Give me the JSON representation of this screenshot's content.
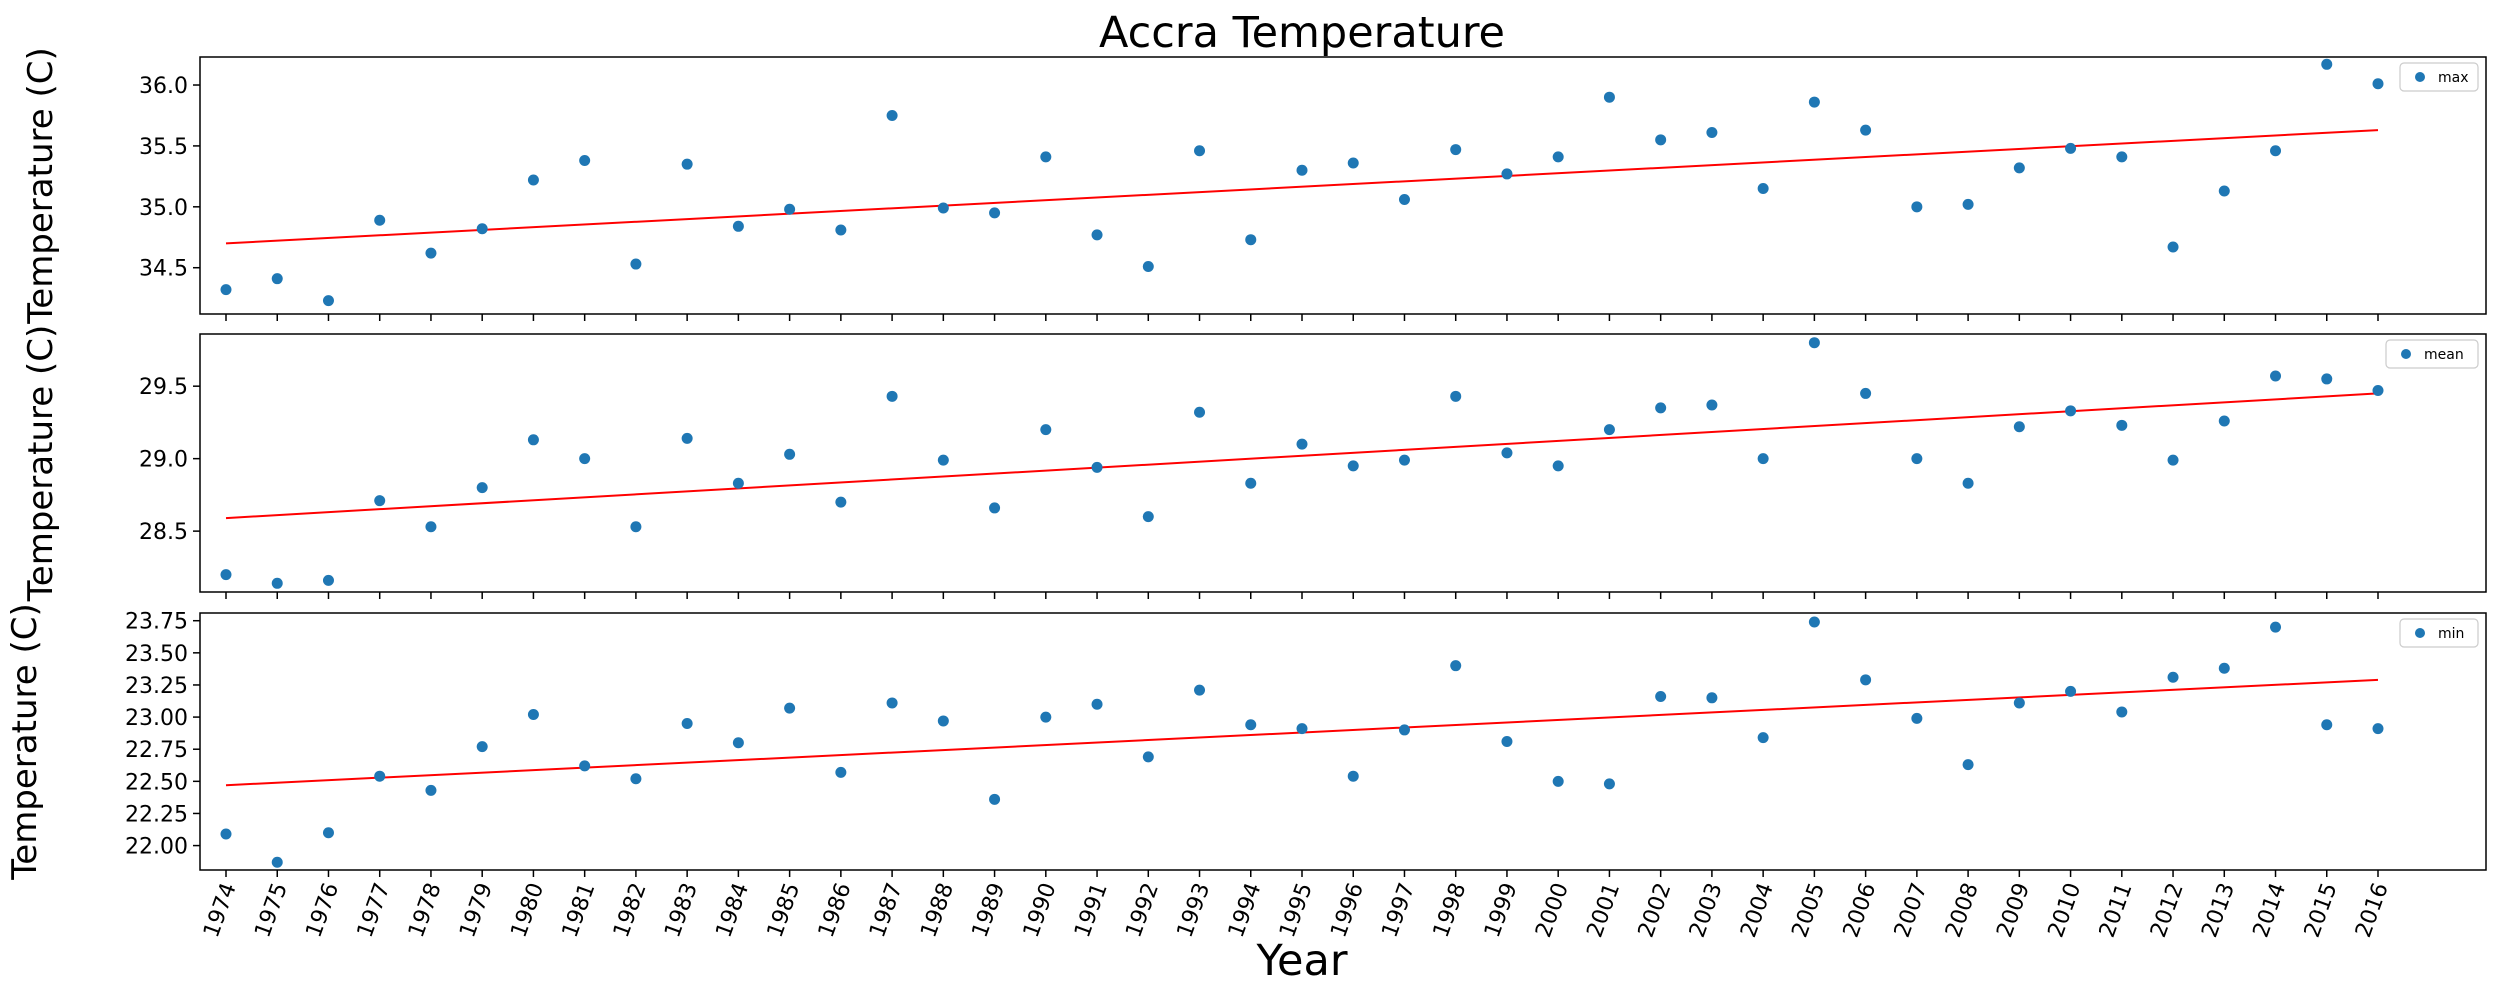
{
  "chart_data": {
    "type": "scatter",
    "title": "Accra Temperature",
    "xlabel": "Year",
    "x": [
      1974,
      1975,
      1976,
      1977,
      1978,
      1979,
      1980,
      1981,
      1982,
      1983,
      1984,
      1985,
      1986,
      1987,
      1988,
      1989,
      1990,
      1991,
      1992,
      1993,
      1994,
      1995,
      1996,
      1997,
      1998,
      1999,
      2000,
      2001,
      2002,
      2003,
      2004,
      2005,
      2006,
      2007,
      2008,
      2009,
      2010,
      2011,
      2012,
      2013,
      2014,
      2015,
      2016
    ],
    "colors": {
      "points": "#1f77b4",
      "trend": "#ff0000"
    },
    "panels": [
      {
        "ylabel": "Temperature (C)",
        "legend": "max",
        "legend_position": "top-right",
        "ylim": [
          34.12,
          36.23
        ],
        "yticks": [
          34.5,
          35.0,
          35.5,
          36.0
        ],
        "ytick_labels": [
          "34.5",
          "35.0",
          "35.5",
          "36.0"
        ],
        "values": [
          34.32,
          34.41,
          34.23,
          34.89,
          34.62,
          34.82,
          35.22,
          35.38,
          34.53,
          35.35,
          34.84,
          34.98,
          34.81,
          35.75,
          34.99,
          34.95,
          35.41,
          34.77,
          34.51,
          35.46,
          34.73,
          35.3,
          35.36,
          35.06,
          35.47,
          35.27,
          35.41,
          35.9,
          35.55,
          35.61,
          35.15,
          35.86,
          35.63,
          35.0,
          35.02,
          35.32,
          35.48,
          35.41,
          34.67,
          35.13,
          35.46,
          36.17,
          36.01
        ],
        "trend": [
          34.7,
          35.63
        ]
      },
      {
        "ylabel": "Temperature (C)",
        "legend": "mean",
        "legend_position": "top-right",
        "ylim": [
          28.08,
          29.86
        ],
        "yticks": [
          28.5,
          29.0,
          29.5
        ],
        "ytick_labels": [
          "28.5",
          "29.0",
          "29.5"
        ],
        "values": [
          28.2,
          28.14,
          28.16,
          28.71,
          28.53,
          28.8,
          29.13,
          29.0,
          28.53,
          29.14,
          28.83,
          29.03,
          28.7,
          29.43,
          28.99,
          28.66,
          29.2,
          28.94,
          28.6,
          29.32,
          28.83,
          29.1,
          28.95,
          28.99,
          29.43,
          29.04,
          28.95,
          29.2,
          29.35,
          29.37,
          29.0,
          29.8,
          29.45,
          29.0,
          28.83,
          29.22,
          29.33,
          29.23,
          28.99,
          29.26,
          29.57,
          29.55,
          29.47
        ],
        "trend": [
          28.59,
          29.45
        ]
      },
      {
        "ylabel": "Temperature (C)",
        "legend": "min",
        "legend_position": "top-right",
        "ylim": [
          21.81,
          23.81
        ],
        "yticks": [
          22.0,
          22.25,
          22.5,
          22.75,
          23.0,
          23.25,
          23.5,
          23.75
        ],
        "ytick_labels": [
          "22.00",
          "22.25",
          "22.50",
          "22.75",
          "23.00",
          "23.25",
          "23.50",
          "23.75"
        ],
        "values": [
          22.09,
          21.87,
          22.1,
          22.54,
          22.43,
          22.77,
          23.02,
          22.62,
          22.52,
          22.95,
          22.8,
          23.07,
          22.57,
          23.11,
          22.97,
          22.36,
          23.0,
          23.1,
          22.69,
          23.21,
          22.94,
          22.91,
          22.54,
          22.9,
          23.4,
          22.81,
          22.5,
          22.48,
          23.16,
          23.15,
          22.84,
          23.74,
          23.29,
          22.99,
          22.63,
          23.11,
          23.2,
          23.04,
          23.31,
          23.38,
          23.7,
          22.94,
          22.91
        ],
        "trend": [
          22.47,
          23.29
        ]
      }
    ]
  }
}
